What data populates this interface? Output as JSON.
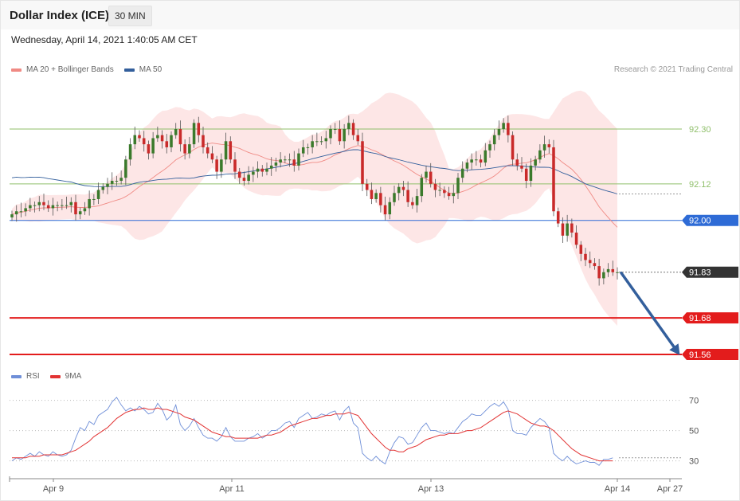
{
  "header": {
    "title": "Dollar Index (ICE)",
    "interval": "30 MIN",
    "datetime": "Wednesday, April 14, 2021 1:40:05 AM CET"
  },
  "price_legend": [
    {
      "label": "MA 20 + Bollinger Bands",
      "color": "#f08a84"
    },
    {
      "label": "MA 50",
      "color": "#335f9c"
    }
  ],
  "rsi_legend": [
    {
      "label": "RSI",
      "color": "#6f8fd8"
    },
    {
      "label": "9MA",
      "color": "#e23333"
    }
  ],
  "copyright": "Research © 2021 Trading Central",
  "chart_data": [
    {
      "type": "candlestick",
      "title": "Dollar Index (ICE)",
      "timeframe": "30 MIN",
      "x_tick_labels": [
        "Apr 9",
        "Apr 11",
        "Apr 13",
        "Apr 14",
        "Apr 27"
      ],
      "ylim": [
        91.47,
        92.52
      ],
      "y_tick_labels": [],
      "grid": false,
      "levels": [
        {
          "value": 92.3,
          "label": "92.30",
          "color": "#8fbf6a",
          "kind": "resistance",
          "box": false
        },
        {
          "value": 92.12,
          "label": "92.12",
          "color": "#8fbf6a",
          "kind": "resistance",
          "box": false
        },
        {
          "value": 92.0,
          "label": "92.00",
          "color": "#2e6bd6",
          "kind": "pivot",
          "box": true
        },
        {
          "value": 91.83,
          "label": "91.83",
          "color": "#333333",
          "kind": "last",
          "box": true
        },
        {
          "value": 91.68,
          "label": "91.68",
          "color": "#e31c1c",
          "kind": "support",
          "box": true
        },
        {
          "value": 91.56,
          "label": "91.56",
          "color": "#e31c1c",
          "kind": "support",
          "box": true
        }
      ],
      "forecast_arrow": {
        "from": {
          "candle_index": 128,
          "value": 91.83
        },
        "to": {
          "value": 91.56
        },
        "color": "#335f9c"
      },
      "close_series": [
        92.02,
        92.03,
        92.03,
        92.04,
        92.05,
        92.05,
        92.06,
        92.05,
        92.04,
        92.05,
        92.05,
        92.05,
        92.05,
        92.06,
        92.02,
        92.03,
        92.04,
        92.07,
        92.07,
        92.1,
        92.11,
        92.12,
        92.13,
        92.13,
        92.14,
        92.2,
        92.25,
        92.28,
        92.27,
        92.25,
        92.22,
        92.27,
        92.28,
        92.26,
        92.24,
        92.28,
        92.3,
        92.25,
        92.22,
        92.25,
        92.32,
        92.28,
        92.24,
        92.22,
        92.2,
        92.16,
        92.2,
        92.26,
        92.2,
        92.16,
        92.14,
        92.13,
        92.15,
        92.16,
        92.17,
        92.16,
        92.17,
        92.18,
        92.19,
        92.2,
        92.2,
        92.2,
        92.18,
        92.22,
        92.24,
        92.24,
        92.26,
        92.26,
        92.26,
        92.27,
        92.3,
        92.3,
        92.26,
        92.3,
        92.32,
        92.28,
        92.26,
        92.12,
        92.1,
        92.07,
        92.09,
        92.05,
        92.02,
        92.06,
        92.09,
        92.11,
        92.1,
        92.06,
        92.05,
        92.08,
        92.14,
        92.16,
        92.12,
        92.1,
        92.1,
        92.09,
        92.08,
        92.09,
        92.14,
        92.17,
        92.19,
        92.2,
        92.2,
        92.19,
        92.23,
        92.25,
        92.28,
        92.3,
        92.32,
        92.28,
        92.2,
        92.18,
        92.17,
        92.13,
        92.18,
        92.2,
        92.23,
        92.25,
        92.24,
        92.03,
        91.99,
        91.95,
        91.99,
        91.96,
        91.92,
        91.89,
        91.87,
        91.86,
        91.85,
        91.81,
        91.83,
        91.84,
        91.83,
        91.83
      ]
    },
    {
      "type": "line",
      "title": "RSI",
      "x_tick_labels": [
        "Apr 9",
        "Apr 11",
        "Apr 13",
        "Apr 14",
        "Apr 27"
      ],
      "y_tick_labels": [
        "70",
        "50",
        "30"
      ],
      "ylim": [
        26,
        74
      ],
      "reference_lines": [
        70,
        50,
        30
      ],
      "series": [
        {
          "name": "RSI",
          "color": "#6f8fd8",
          "values": [
            30,
            32,
            31,
            33,
            35,
            33,
            36,
            34,
            33,
            36,
            34,
            33,
            34,
            37,
            45,
            52,
            50,
            56,
            54,
            60,
            62,
            64,
            69,
            72,
            67,
            63,
            65,
            63,
            66,
            64,
            61,
            62,
            68,
            64,
            57,
            60,
            67,
            54,
            50,
            53,
            58,
            52,
            47,
            45,
            45,
            43,
            46,
            52,
            46,
            43,
            43,
            43,
            45,
            46,
            48,
            45,
            47,
            50,
            50,
            52,
            55,
            56,
            52,
            58,
            60,
            62,
            58,
            59,
            61,
            60,
            62,
            63,
            57,
            63,
            66,
            55,
            52,
            35,
            32,
            30,
            33,
            30,
            28,
            36,
            42,
            46,
            45,
            41,
            42,
            47,
            52,
            55,
            50,
            50,
            49,
            48,
            49,
            48,
            52,
            56,
            58,
            61,
            60,
            60,
            63,
            66,
            68,
            66,
            69,
            64,
            50,
            48,
            48,
            47,
            52,
            55,
            58,
            56,
            52,
            35,
            32,
            30,
            33,
            30,
            28,
            29,
            30,
            29,
            29,
            27,
            31,
            31,
            32
          ]
        },
        {
          "name": "9MA",
          "color": "#e23333",
          "values": [
            32,
            32,
            32,
            32,
            33,
            33,
            33,
            34,
            34,
            34,
            34,
            34,
            35,
            36,
            37,
            39,
            41,
            43,
            46,
            48,
            50,
            52,
            55,
            58,
            60,
            62,
            63,
            64,
            64,
            65,
            64,
            64,
            65,
            64,
            64,
            63,
            62,
            61,
            59,
            58,
            57,
            55,
            53,
            51,
            49,
            48,
            47,
            46,
            46,
            45,
            45,
            45,
            45,
            45,
            45,
            46,
            47,
            47,
            48,
            49,
            51,
            53,
            54,
            55,
            56,
            57,
            58,
            58,
            59,
            60,
            60,
            61,
            61,
            61,
            62,
            61,
            60,
            56,
            52,
            48,
            45,
            42,
            39,
            37,
            37,
            36,
            36,
            38,
            39,
            40,
            42,
            44,
            45,
            46,
            47,
            47,
            48,
            48,
            48,
            49,
            50,
            50,
            51,
            52,
            54,
            56,
            58,
            60,
            62,
            63,
            62,
            61,
            59,
            57,
            55,
            54,
            53,
            53,
            52,
            50,
            47,
            44,
            41,
            38,
            36,
            34,
            33,
            32,
            31,
            30,
            30,
            30,
            30
          ]
        }
      ],
      "last_value_labels": [
        {
          "value": 32
        }
      ]
    }
  ]
}
